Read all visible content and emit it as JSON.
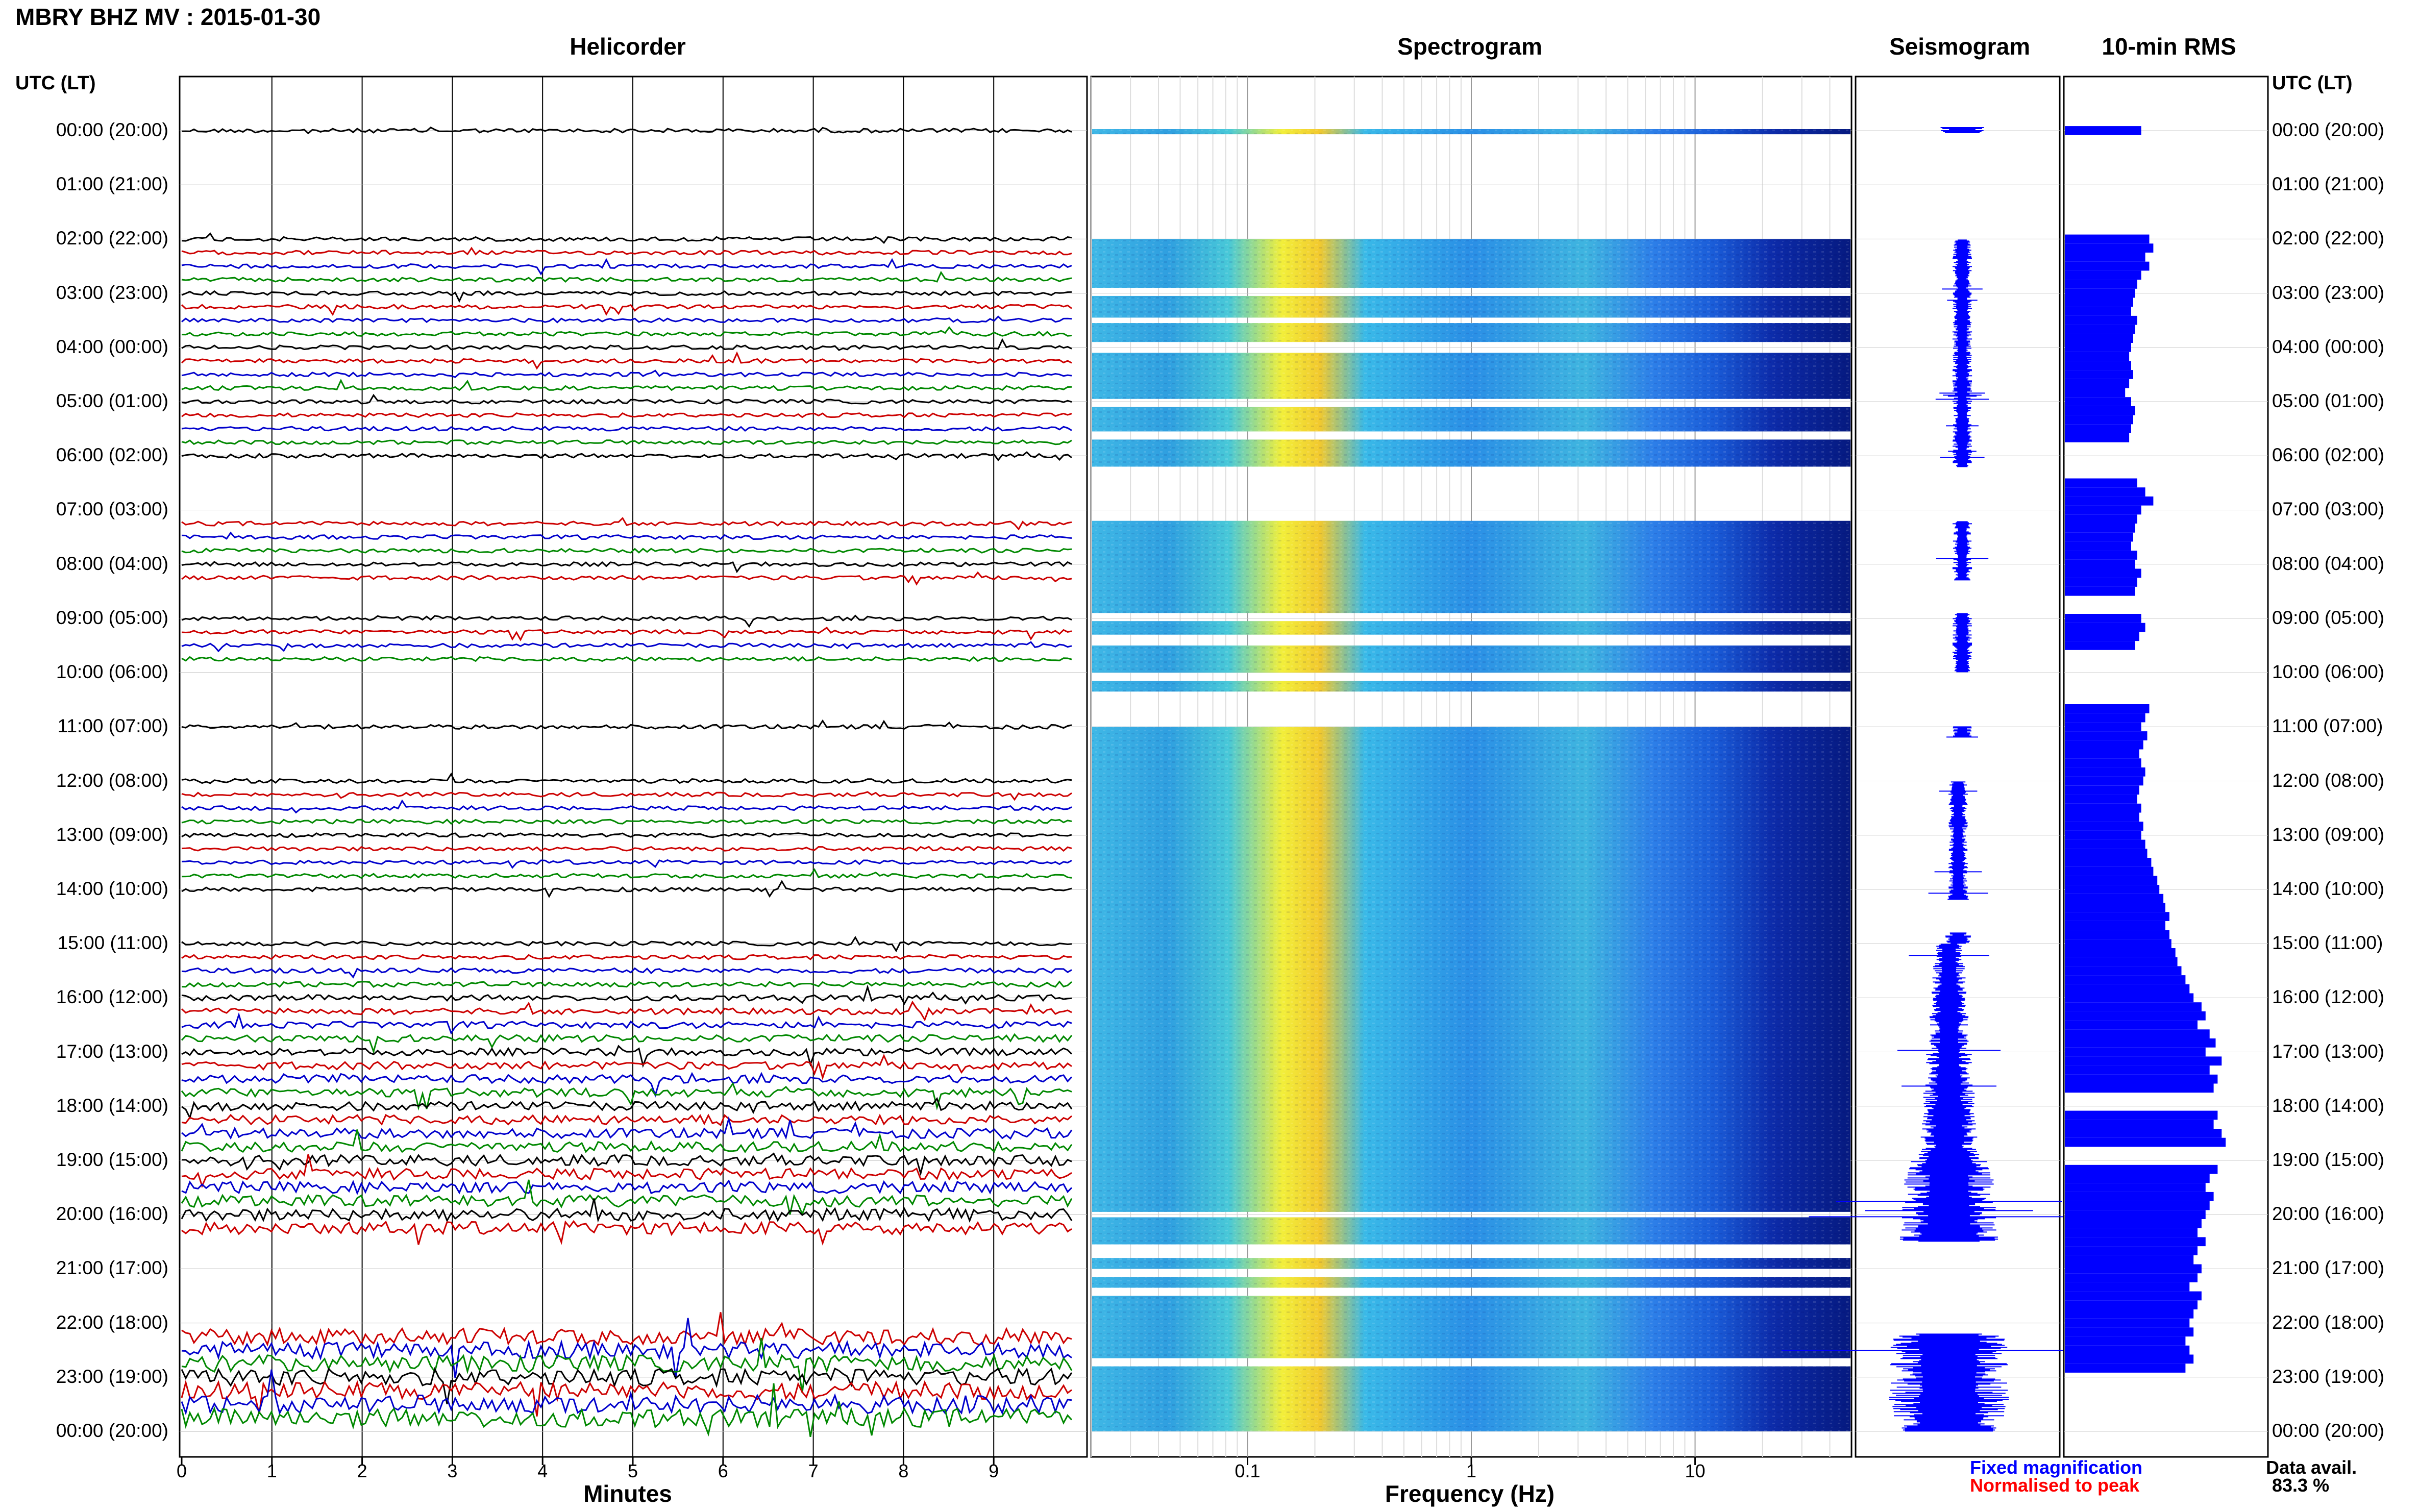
{
  "header": {
    "title": "MBRY BHZ MV : 2015-01-30"
  },
  "panels": {
    "helicorder": "Helicorder",
    "spectrogram": "Spectrogram",
    "seismogram": "Seismogram",
    "rms": "10-min RMS"
  },
  "axis": {
    "utc_label": "UTC (LT)",
    "minutes_label": "Minutes",
    "frequency_label": "Frequency (Hz)"
  },
  "legend": {
    "fixed": "Fixed magnification",
    "normalised": "Normalised to peak",
    "fixed_color": "#0000ff",
    "normalised_color": "#ff0000",
    "data_avail_label": "Data avail.",
    "data_avail_value": "83.3 %"
  },
  "chart_data": {
    "type": "heatmap",
    "title": "MBRY BHZ MV : 2015-01-30",
    "hours": [
      "00:00 (20:00)",
      "01:00 (21:00)",
      "02:00 (22:00)",
      "03:00 (23:00)",
      "04:00 (00:00)",
      "05:00 (01:00)",
      "06:00 (02:00)",
      "07:00 (03:00)",
      "08:00 (04:00)",
      "09:00 (05:00)",
      "10:00 (06:00)",
      "11:00 (07:00)",
      "12:00 (08:00)",
      "13:00 (09:00)",
      "14:00 (10:00)",
      "15:00 (11:00)",
      "16:00 (12:00)",
      "17:00 (13:00)",
      "18:00 (14:00)",
      "19:00 (15:00)",
      "20:00 (16:00)",
      "21:00 (17:00)",
      "22:00 (18:00)",
      "23:00 (19:00)",
      "00:00 (20:00)"
    ],
    "helicorder": {
      "xlabel": "Minutes",
      "xticks": [
        0,
        1,
        2,
        3,
        4,
        5,
        6,
        7,
        8,
        9
      ],
      "xlim": [
        0,
        10
      ],
      "trace_colors": [
        "#000000",
        "#cc0000",
        "#0000cc",
        "#008800"
      ]
    },
    "spectrogram": {
      "xlabel": "Frequency (Hz)",
      "xscale": "log",
      "xticks": [
        0.1,
        1,
        10
      ],
      "xtick_labels": [
        "0.1",
        "1",
        "10"
      ],
      "xlim": [
        0.02,
        50
      ]
    },
    "seismogram": {
      "color": "#0000ff"
    },
    "rms": {
      "color": "#0000ff",
      "values": [
        0.38,
        0,
        0,
        0,
        0,
        0,
        0,
        0,
        0,
        0,
        0,
        0,
        0.42,
        0.44,
        0.4,
        0.42,
        0.38,
        0.36,
        0.35,
        0.34,
        0.33,
        0.36,
        0.35,
        0.34,
        0.33,
        0.32,
        0.33,
        0.34,
        0.32,
        0.3,
        0.33,
        0.35,
        0.34,
        0.33,
        0.32,
        0,
        0,
        0,
        0,
        0.36,
        0.4,
        0.44,
        0.38,
        0.36,
        0.35,
        0.34,
        0.33,
        0.36,
        0.35,
        0.38,
        0.36,
        0.35,
        0,
        0,
        0.38,
        0.4,
        0.37,
        0.35,
        0,
        0,
        0,
        0,
        0,
        0,
        0.42,
        0.4,
        0.38,
        0.41,
        0.39,
        0.37,
        0.38,
        0.4,
        0.39,
        0.37,
        0.36,
        0.38,
        0.37,
        0.39,
        0.38,
        0.4,
        0.41,
        0.43,
        0.44,
        0.46,
        0.47,
        0.49,
        0.5,
        0.52,
        0.5,
        0.52,
        0.53,
        0.55,
        0.56,
        0.58,
        0.6,
        0.62,
        0.64,
        0.68,
        0.7,
        0.66,
        0.72,
        0.75,
        0.7,
        0.78,
        0.72,
        0.76,
        0.74,
        0,
        0,
        0.76,
        0.74,
        0.78,
        0.8,
        0,
        0,
        0.76,
        0.72,
        0.7,
        0.74,
        0.72,
        0.7,
        0.68,
        0.66,
        0.7,
        0.66,
        0.64,
        0.68,
        0.66,
        0.62,
        0.68,
        0.66,
        0.64,
        0.62,
        0.64,
        0.6,
        0.62,
        0.64,
        0.6
      ]
    }
  }
}
